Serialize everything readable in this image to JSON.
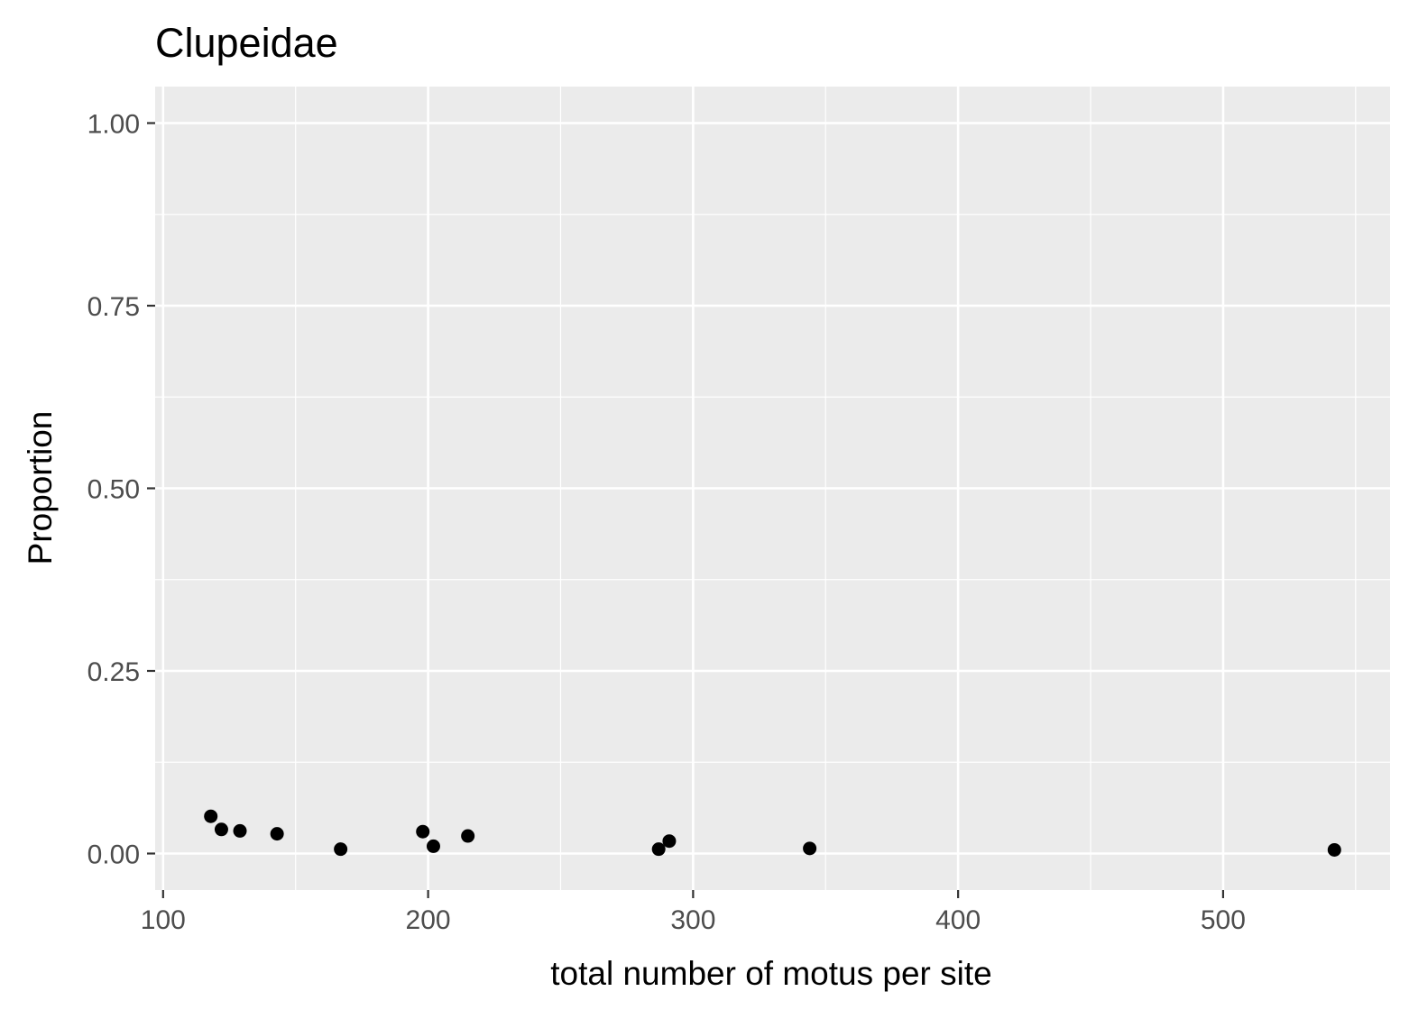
{
  "chart_data": {
    "type": "scatter",
    "title": "Clupeidae",
    "xlabel": "total number of motus per site",
    "ylabel": "Proportion",
    "xlim": [
      97,
      563
    ],
    "ylim": [
      -0.05,
      1.05
    ],
    "x_ticks": [
      100,
      200,
      300,
      400,
      500
    ],
    "x_tick_labels": [
      "100",
      "200",
      "300",
      "400",
      "500"
    ],
    "y_ticks": [
      0,
      0.25,
      0.5,
      0.75,
      1.0
    ],
    "y_tick_labels": [
      "0.00",
      "0.25",
      "0.50",
      "0.75",
      "1.00"
    ],
    "grid": true,
    "legend": "none",
    "points": [
      {
        "x": 118,
        "y": 0.051
      },
      {
        "x": 122,
        "y": 0.033
      },
      {
        "x": 129,
        "y": 0.031
      },
      {
        "x": 143,
        "y": 0.027
      },
      {
        "x": 167,
        "y": 0.006
      },
      {
        "x": 198,
        "y": 0.03
      },
      {
        "x": 202,
        "y": 0.01
      },
      {
        "x": 215,
        "y": 0.024
      },
      {
        "x": 287,
        "y": 0.006
      },
      {
        "x": 291,
        "y": 0.017
      },
      {
        "x": 344,
        "y": 0.007
      },
      {
        "x": 542,
        "y": 0.005
      }
    ]
  },
  "colors": {
    "panel_background": "#ebebeb",
    "grid_major": "#ffffff",
    "point": "#000000",
    "tick_text": "#4d4d4d",
    "axis_tick": "#333333"
  }
}
